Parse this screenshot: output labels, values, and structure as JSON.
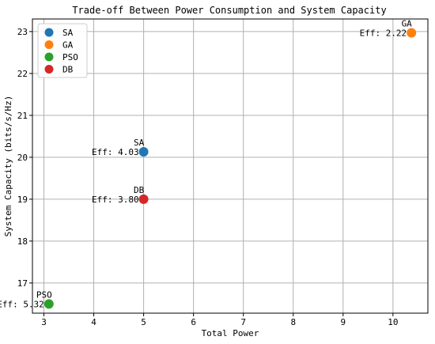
{
  "chart_data": {
    "type": "scatter",
    "title": "Trade-off Between Power Consumption and System Capacity",
    "xlabel": "Total Power",
    "ylabel": "System Capacity (bits/s/Hz)",
    "xlim": [
      2.77,
      10.7
    ],
    "ylim": [
      16.28,
      23.3
    ],
    "xticks": [
      3,
      4,
      5,
      6,
      7,
      8,
      9,
      10
    ],
    "yticks": [
      17,
      18,
      19,
      20,
      21,
      22,
      23
    ],
    "grid": true,
    "legend_position": "top-left",
    "series": [
      {
        "name": "SA",
        "color": "#1f77b4",
        "x": 5.0,
        "y": 20.13,
        "label": "SA",
        "eff": "Eff: 4.03"
      },
      {
        "name": "GA",
        "color": "#ff7f0e",
        "x": 10.37,
        "y": 22.97,
        "label": "GA",
        "eff": "Eff: 2.22"
      },
      {
        "name": "PSO",
        "color": "#2ca02c",
        "x": 3.1,
        "y": 16.5,
        "label": "PSO",
        "eff": "Eff: 5.32"
      },
      {
        "name": "DB",
        "color": "#d62728",
        "x": 5.0,
        "y": 19.0,
        "label": "DB",
        "eff": "Eff: 3.80"
      }
    ]
  }
}
